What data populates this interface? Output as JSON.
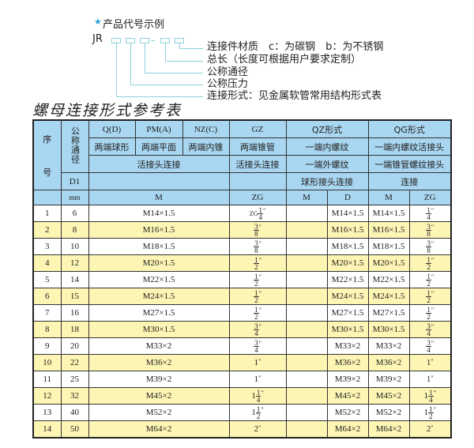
{
  "example": {
    "star_icon": "star",
    "title": "产品代号示例",
    "code_prefix": "JR",
    "separator": "-",
    "descriptions": [
      "连接件材质　c：为碳钢　b：为不锈钢",
      "总长（长度可根据用户要求定制）",
      "公称通径",
      "公称压力",
      "连接形式：见金属软管常用结构形式表"
    ]
  },
  "table_title": "螺母连接形式参考表",
  "colors": {
    "header_bg": "#a9d6f0",
    "alt_row_bg": "#fdf5b4",
    "diagram_line": "#8fd0dc",
    "star": "#2a9fd6"
  },
  "header": {
    "seq": "序号",
    "seq_top": "序",
    "seq_bottom": "号",
    "nominal": "公称通径",
    "d1": "D1",
    "mm": "mm",
    "q": "Q(D)",
    "pm": "PM(A)",
    "nz": "NZ(C)",
    "gz": "GZ",
    "qz": "QZ形式",
    "qg": "QG形式",
    "q_desc": "两端球形",
    "pm_desc": "两端平面",
    "nz_desc": "两端内锥",
    "gz_desc": "两端锥管",
    "qz_desc1": "一端内螺纹",
    "qg_desc1": "一端内螺纹活接头",
    "union": "活接头连接",
    "gz_union": "活接头连接",
    "qz_desc2": "一端外螺纹",
    "qg_desc2": "一端锥管螺纹接头",
    "qz_desc3": "球形接头连接",
    "qg_desc3": "连接",
    "m": "M",
    "zg": "ZG",
    "qz_m": "M",
    "qz_d": "D",
    "qg_m": "M",
    "qg_zg": "ZG"
  },
  "rows": [
    {
      "no": "1",
      "d1": "6",
      "m": "M14×1.5",
      "zg": {
        "pre": "ZG",
        "w": "",
        "n": "1",
        "d": "4"
      },
      "qz_m": "",
      "qz_d": "M14×1.5",
      "qg_m": "M14×1.5",
      "qg_zg": {
        "w": "",
        "n": "1",
        "d": "4"
      }
    },
    {
      "no": "2",
      "d1": "8",
      "m": "M16×1.5",
      "zg": {
        "w": "",
        "n": "3",
        "d": "8"
      },
      "qz_m": "",
      "qz_d": "M16×1.5",
      "qg_m": "M16×1.5",
      "qg_zg": {
        "w": "",
        "n": "3",
        "d": "8"
      }
    },
    {
      "no": "3",
      "d1": "10",
      "m": "M18×1.5",
      "zg": {
        "w": "",
        "n": "3",
        "d": "8"
      },
      "qz_m": "",
      "qz_d": "M18×1.5",
      "qg_m": "M18×1.5",
      "qg_zg": {
        "w": "",
        "n": "3",
        "d": "8"
      }
    },
    {
      "no": "4",
      "d1": "12",
      "m": "M20×1.5",
      "zg": {
        "w": "",
        "n": "1",
        "d": "2"
      },
      "qz_m": "",
      "qz_d": "M20×1.5",
      "qg_m": "M20×1.5",
      "qg_zg": {
        "w": "",
        "n": "1",
        "d": "2"
      }
    },
    {
      "no": "5",
      "d1": "14",
      "m": "M22×1.5",
      "zg": {
        "w": "",
        "n": "1",
        "d": "2"
      },
      "qz_m": "",
      "qz_d": "M22×1.5",
      "qg_m": "M22×1.5",
      "qg_zg": {
        "w": "",
        "n": "1",
        "d": "2"
      }
    },
    {
      "no": "6",
      "d1": "15",
      "m": "M24×1.5",
      "zg": {
        "w": "",
        "n": "1",
        "d": "2"
      },
      "qz_m": "",
      "qz_d": "M24×1.5",
      "qg_m": "M24×1.5",
      "qg_zg": {
        "w": "",
        "n": "1",
        "d": "2"
      }
    },
    {
      "no": "7",
      "d1": "16",
      "m": "M27×1.5",
      "zg": {
        "w": "",
        "n": "1",
        "d": "2"
      },
      "qz_m": "",
      "qz_d": "M27×1.5",
      "qg_m": "M27×1.5",
      "qg_zg": {
        "w": "",
        "n": "1",
        "d": "2"
      }
    },
    {
      "no": "8",
      "d1": "18",
      "m": "M30×1.5",
      "zg": {
        "w": "",
        "n": "3",
        "d": "4"
      },
      "qz_m": "",
      "qz_d": "M30×1.5",
      "qg_m": "M30×1.5",
      "qg_zg": {
        "w": "",
        "n": "3",
        "d": "4"
      }
    },
    {
      "no": "9",
      "d1": "20",
      "m": "M33×2",
      "zg": {
        "w": "",
        "n": "3",
        "d": "4"
      },
      "qz_m": "",
      "qz_d": "M33×2",
      "qg_m": "M33×2",
      "qg_zg": {
        "w": "",
        "n": "3",
        "d": "4"
      }
    },
    {
      "no": "10",
      "d1": "22",
      "m": "M36×2",
      "zg": {
        "w": "1",
        "n": "",
        "d": ""
      },
      "qz_m": "",
      "qz_d": "M36×2",
      "qg_m": "M36×2",
      "qg_zg": {
        "w": "1",
        "n": "",
        "d": ""
      }
    },
    {
      "no": "11",
      "d1": "25",
      "m": "M39×2",
      "zg": {
        "w": "1",
        "n": "",
        "d": ""
      },
      "qz_m": "",
      "qz_d": "M39×2",
      "qg_m": "M39×2",
      "qg_zg": {
        "w": "1",
        "n": "",
        "d": ""
      }
    },
    {
      "no": "12",
      "d1": "32",
      "m": "M45×2",
      "zg": {
        "w": "1",
        "n": "1",
        "d": "4"
      },
      "qz_m": "",
      "qz_d": "M45×2",
      "qg_m": "M45×2",
      "qg_zg": {
        "w": "1",
        "n": "1",
        "d": "4"
      }
    },
    {
      "no": "13",
      "d1": "40",
      "m": "M52×2",
      "zg": {
        "w": "1",
        "n": "1",
        "d": "2"
      },
      "qz_m": "",
      "qz_d": "M52×2",
      "qg_m": "M52×2",
      "qg_zg": {
        "w": "1",
        "n": "1",
        "d": "2"
      }
    },
    {
      "no": "14",
      "d1": "50",
      "m": "M64×2",
      "zg": {
        "w": "2",
        "n": "",
        "d": ""
      },
      "qz_m": "",
      "qz_d": "M64×2",
      "qg_m": "M64×2",
      "qg_zg": {
        "w": "2",
        "n": "",
        "d": ""
      }
    }
  ]
}
